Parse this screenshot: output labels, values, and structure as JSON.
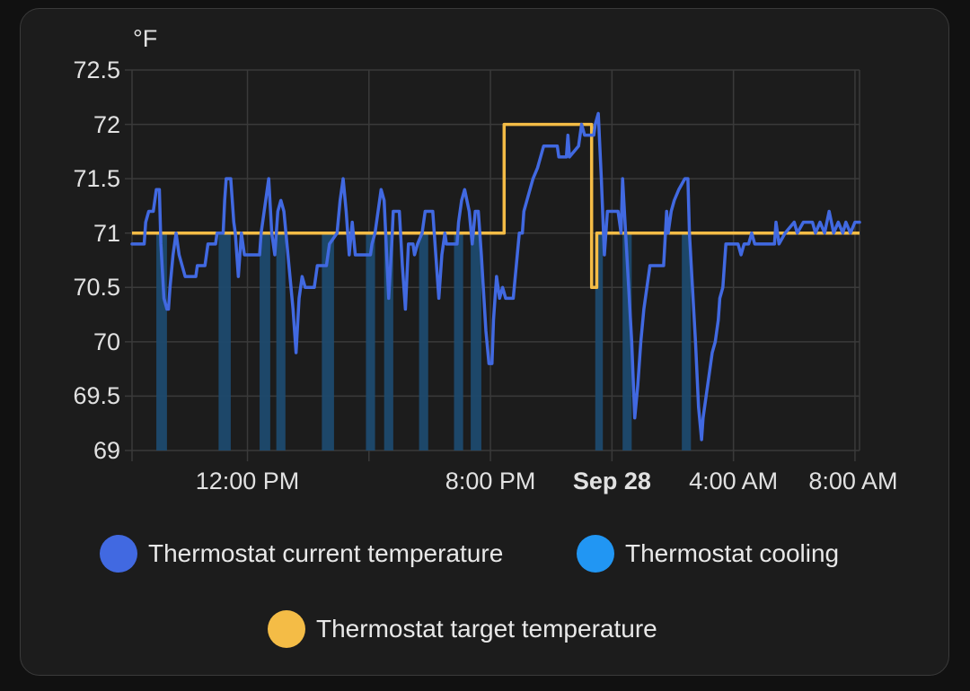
{
  "card": {
    "unit_label": "°F"
  },
  "colors": {
    "current": "#4169e1",
    "cooling": "#2196f3",
    "cooling_fill": "#1e4a6e",
    "target": "#f4bc46",
    "grid": "#3a3a3a"
  },
  "legend": [
    {
      "label": "Thermostat current temperature",
      "color": "#4169e1"
    },
    {
      "label": "Thermostat cooling",
      "color": "#2196f3"
    },
    {
      "label": "Thermostat target temperature",
      "color": "#f4bc46"
    }
  ],
  "chart_data": {
    "type": "line",
    "title": "",
    "ylabel": "°F",
    "xlabel": "",
    "ylim": [
      69,
      72.5
    ],
    "y_ticks": [
      "72.5",
      "72",
      "71.5",
      "71",
      "70.5",
      "70",
      "69.5",
      "69"
    ],
    "x_ticks": [
      {
        "label": "12:00 PM",
        "hour": 12.0,
        "bold": false
      },
      {
        "label": "8:00 PM",
        "hour": 20.0,
        "bold": false
      },
      {
        "label": "Sep 28",
        "hour": 24.0,
        "bold": true
      },
      {
        "label": "4:00 AM",
        "hour": 28.0,
        "bold": false
      },
      {
        "label": "8:00 AM",
        "hour": 32.0,
        "bold": false
      }
    ],
    "x_range_hours": [
      8.2,
      32.15
    ],
    "grid_hours": [
      8.2,
      12,
      16,
      20,
      24,
      28,
      32
    ],
    "legend_position": "bottom",
    "series": [
      {
        "name": "Thermostat current temperature",
        "kind": "line",
        "points": [
          [
            8.2,
            70.9
          ],
          [
            8.6,
            70.9
          ],
          [
            8.65,
            71.1
          ],
          [
            8.75,
            71.2
          ],
          [
            8.9,
            71.2
          ],
          [
            8.95,
            71.3
          ],
          [
            9.0,
            71.4
          ],
          [
            9.1,
            71.4
          ],
          [
            9.15,
            70.9
          ],
          [
            9.25,
            70.4
          ],
          [
            9.35,
            70.3
          ],
          [
            9.4,
            70.3
          ],
          [
            9.45,
            70.5
          ],
          [
            9.55,
            70.8
          ],
          [
            9.65,
            71.0
          ],
          [
            9.75,
            70.8
          ],
          [
            9.85,
            70.7
          ],
          [
            9.95,
            70.6
          ],
          [
            10.3,
            70.6
          ],
          [
            10.35,
            70.7
          ],
          [
            10.6,
            70.7
          ],
          [
            10.7,
            70.9
          ],
          [
            10.95,
            70.9
          ],
          [
            11.0,
            71.0
          ],
          [
            11.2,
            71.0
          ],
          [
            11.25,
            71.3
          ],
          [
            11.3,
            71.5
          ],
          [
            11.45,
            71.5
          ],
          [
            11.55,
            71.1
          ],
          [
            11.6,
            71.0
          ],
          [
            11.7,
            70.6
          ],
          [
            11.8,
            71.0
          ],
          [
            11.9,
            70.8
          ],
          [
            12.4,
            70.8
          ],
          [
            12.45,
            71.0
          ],
          [
            12.5,
            71.1
          ],
          [
            12.6,
            71.3
          ],
          [
            12.7,
            71.5
          ],
          [
            12.8,
            71.0
          ],
          [
            12.9,
            70.8
          ],
          [
            13.0,
            71.2
          ],
          [
            13.1,
            71.3
          ],
          [
            13.2,
            71.2
          ],
          [
            13.3,
            70.9
          ],
          [
            13.4,
            70.6
          ],
          [
            13.5,
            70.3
          ],
          [
            13.6,
            69.9
          ],
          [
            13.7,
            70.4
          ],
          [
            13.8,
            70.6
          ],
          [
            13.9,
            70.5
          ],
          [
            14.2,
            70.5
          ],
          [
            14.3,
            70.7
          ],
          [
            14.6,
            70.7
          ],
          [
            14.7,
            70.9
          ],
          [
            14.95,
            71.0
          ],
          [
            15.05,
            71.3
          ],
          [
            15.15,
            71.5
          ],
          [
            15.25,
            71.2
          ],
          [
            15.35,
            70.8
          ],
          [
            15.45,
            71.1
          ],
          [
            15.55,
            70.8
          ],
          [
            16.05,
            70.8
          ],
          [
            16.1,
            70.9
          ],
          [
            16.2,
            71.0
          ],
          [
            16.3,
            71.2
          ],
          [
            16.4,
            71.4
          ],
          [
            16.5,
            71.3
          ],
          [
            16.55,
            71.0
          ],
          [
            16.65,
            70.4
          ],
          [
            16.75,
            70.9
          ],
          [
            16.8,
            71.2
          ],
          [
            17.0,
            71.2
          ],
          [
            17.1,
            70.7
          ],
          [
            17.2,
            70.3
          ],
          [
            17.3,
            70.9
          ],
          [
            17.45,
            70.9
          ],
          [
            17.5,
            70.8
          ],
          [
            17.6,
            70.9
          ],
          [
            17.75,
            71.0
          ],
          [
            17.85,
            71.2
          ],
          [
            18.1,
            71.2
          ],
          [
            18.2,
            70.8
          ],
          [
            18.3,
            70.4
          ],
          [
            18.4,
            70.8
          ],
          [
            18.5,
            71.0
          ],
          [
            18.55,
            70.9
          ],
          [
            18.9,
            70.9
          ],
          [
            18.95,
            71.1
          ],
          [
            19.05,
            71.3
          ],
          [
            19.15,
            71.4
          ],
          [
            19.3,
            71.2
          ],
          [
            19.4,
            70.9
          ],
          [
            19.5,
            71.2
          ],
          [
            19.6,
            71.2
          ],
          [
            19.7,
            70.8
          ],
          [
            19.85,
            70.1
          ],
          [
            19.95,
            69.8
          ],
          [
            20.05,
            69.8
          ],
          [
            20.1,
            70.2
          ],
          [
            20.2,
            70.6
          ],
          [
            20.3,
            70.4
          ],
          [
            20.4,
            70.5
          ],
          [
            20.5,
            70.4
          ],
          [
            20.75,
            70.4
          ],
          [
            20.85,
            70.7
          ],
          [
            20.95,
            71.0
          ],
          [
            21.05,
            71.0
          ],
          [
            21.1,
            71.2
          ],
          [
            21.3,
            71.4
          ],
          [
            21.4,
            71.5
          ],
          [
            21.55,
            71.6
          ],
          [
            21.65,
            71.7
          ],
          [
            21.75,
            71.8
          ],
          [
            22.2,
            71.8
          ],
          [
            22.25,
            71.7
          ],
          [
            22.5,
            71.7
          ],
          [
            22.55,
            71.9
          ],
          [
            22.6,
            71.7
          ],
          [
            22.9,
            71.8
          ],
          [
            23.0,
            72.0
          ],
          [
            23.1,
            71.9
          ],
          [
            23.4,
            71.9
          ],
          [
            23.45,
            72.0
          ],
          [
            23.55,
            72.1
          ],
          [
            23.65,
            71.5
          ],
          [
            23.75,
            70.8
          ],
          [
            23.85,
            71.2
          ],
          [
            24.2,
            71.2
          ],
          [
            24.3,
            71.0
          ],
          [
            24.35,
            71.5
          ],
          [
            24.45,
            71.0
          ],
          [
            24.55,
            70.5
          ],
          [
            24.65,
            70.0
          ],
          [
            24.75,
            69.3
          ],
          [
            24.85,
            69.6
          ],
          [
            24.95,
            70.0
          ],
          [
            25.05,
            70.3
          ],
          [
            25.15,
            70.5
          ],
          [
            25.25,
            70.7
          ],
          [
            25.7,
            70.7
          ],
          [
            25.8,
            71.2
          ],
          [
            25.85,
            71.0
          ],
          [
            25.95,
            71.2
          ],
          [
            26.05,
            71.3
          ],
          [
            26.2,
            71.4
          ],
          [
            26.4,
            71.5
          ],
          [
            26.5,
            71.5
          ],
          [
            26.55,
            71.0
          ],
          [
            26.65,
            70.5
          ],
          [
            26.75,
            70.0
          ],
          [
            26.85,
            69.4
          ],
          [
            26.95,
            69.1
          ],
          [
            27.0,
            69.3
          ],
          [
            27.1,
            69.5
          ],
          [
            27.2,
            69.7
          ],
          [
            27.3,
            69.9
          ],
          [
            27.4,
            70.0
          ],
          [
            27.5,
            70.2
          ],
          [
            27.55,
            70.4
          ],
          [
            27.65,
            70.5
          ],
          [
            27.75,
            70.9
          ],
          [
            28.15,
            70.9
          ],
          [
            28.25,
            70.8
          ],
          [
            28.35,
            70.9
          ],
          [
            28.5,
            70.9
          ],
          [
            28.6,
            71.0
          ],
          [
            28.7,
            70.9
          ],
          [
            29.35,
            70.9
          ],
          [
            29.4,
            71.1
          ],
          [
            29.5,
            70.9
          ],
          [
            29.7,
            71.0
          ],
          [
            30.0,
            71.1
          ],
          [
            30.1,
            71.0
          ],
          [
            30.3,
            71.1
          ],
          [
            30.6,
            71.1
          ],
          [
            30.7,
            71.0
          ],
          [
            30.85,
            71.1
          ],
          [
            31.0,
            71.0
          ],
          [
            31.15,
            71.2
          ],
          [
            31.3,
            71.0
          ],
          [
            31.45,
            71.1
          ],
          [
            31.6,
            71.0
          ],
          [
            31.7,
            71.1
          ],
          [
            31.85,
            71.0
          ],
          [
            32.0,
            71.1
          ],
          [
            32.15,
            71.1
          ]
        ]
      },
      {
        "name": "Thermostat cooling",
        "kind": "bars",
        "intervals": [
          [
            9.0,
            9.35
          ],
          [
            11.05,
            11.45
          ],
          [
            12.4,
            12.75
          ],
          [
            12.95,
            13.25
          ],
          [
            14.45,
            14.85
          ],
          [
            15.9,
            16.2
          ],
          [
            16.5,
            16.8
          ],
          [
            17.65,
            17.95
          ],
          [
            18.8,
            19.1
          ],
          [
            19.35,
            19.7
          ],
          [
            23.45,
            23.7
          ],
          [
            24.35,
            24.65
          ],
          [
            26.3,
            26.6
          ]
        ]
      },
      {
        "name": "Thermostat target temperature",
        "kind": "step",
        "points": [
          [
            8.2,
            71.0
          ],
          [
            20.45,
            71.0
          ],
          [
            20.45,
            72.0
          ],
          [
            23.33,
            72.0
          ],
          [
            23.33,
            70.5
          ],
          [
            23.5,
            70.5
          ],
          [
            23.5,
            71.0
          ],
          [
            32.15,
            71.0
          ]
        ]
      }
    ]
  }
}
